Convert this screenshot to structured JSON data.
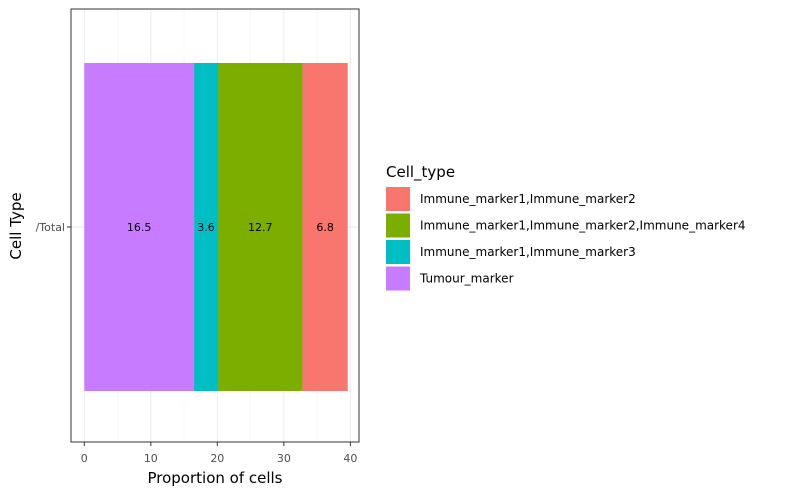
{
  "chart_data": {
    "type": "bar",
    "orientation": "horizontal",
    "stacked": true,
    "xlabel": "Proportion of cells",
    "ylabel": "Cell Type",
    "xlim": [
      -2.0,
      41.3
    ],
    "xticks": [
      0,
      10,
      20,
      30,
      40
    ],
    "categories": [
      "/Total"
    ],
    "grid": true,
    "legend_title": "Cell_type",
    "legend_position": "right",
    "stack_order": [
      "Tumour_marker",
      "Immune_marker1,Immune_marker3",
      "Immune_marker1,Immune_marker2,Immune_marker4",
      "Immune_marker1,Immune_marker2"
    ],
    "series": [
      {
        "name": "Immune_marker1,Immune_marker2",
        "values": [
          6.8
        ],
        "label": "6.8",
        "color": "#F8766D"
      },
      {
        "name": "Immune_marker1,Immune_marker2,Immune_marker4",
        "values": [
          12.7
        ],
        "label": "12.7",
        "color": "#7CAE00"
      },
      {
        "name": "Immune_marker1,Immune_marker3",
        "values": [
          3.6
        ],
        "label": "3.6",
        "color": "#00BFC4"
      },
      {
        "name": "Tumour_marker",
        "values": [
          16.5
        ],
        "label": "16.5",
        "color": "#C77CFF"
      }
    ]
  }
}
